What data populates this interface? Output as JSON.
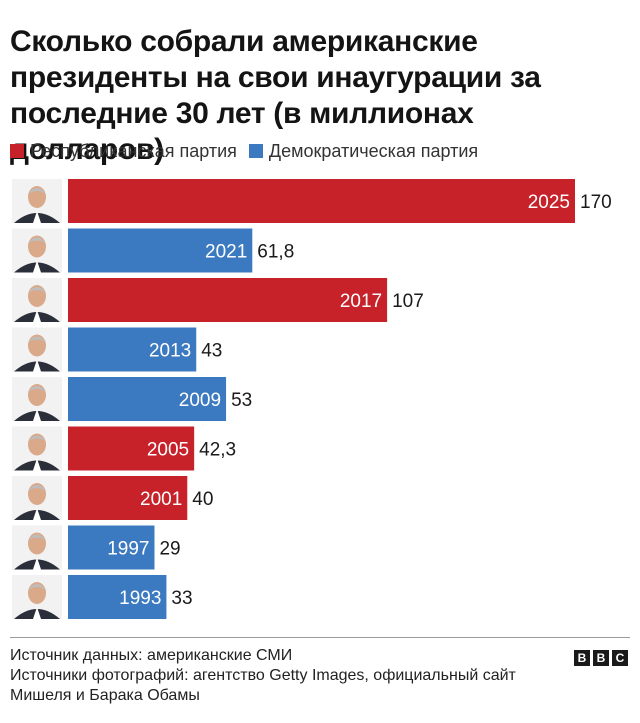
{
  "title": "Сколько собрали американские президенты на свои инаугурации за последние 30 лет (в миллионах долларов)",
  "legend": [
    {
      "label": "Республиканская партия",
      "color": "#c7222a"
    },
    {
      "label": "Демократическая партия",
      "color": "#3b7ac0"
    }
  ],
  "chart_data": {
    "type": "bar",
    "orientation": "horizontal",
    "categories": [
      "2025",
      "2021",
      "2017",
      "2013",
      "2009",
      "2005",
      "2001",
      "1997",
      "1993"
    ],
    "values": [
      170,
      61.8,
      107,
      43,
      53,
      42.3,
      40,
      29,
      33
    ],
    "value_labels": [
      "170",
      "61,8",
      "107",
      "43",
      "53",
      "42,3",
      "40",
      "29",
      "33"
    ],
    "party": [
      "Республиканская партия",
      "Демократическая партия",
      "Республиканская партия",
      "Демократическая партия",
      "Демократическая партия",
      "Республиканская партия",
      "Республиканская партия",
      "Демократическая партия",
      "Демократическая партия"
    ],
    "xlim": [
      0,
      170
    ],
    "grid": false,
    "legend_position": "top-left"
  },
  "footer": {
    "data_source": "Источник данных: американские СМИ",
    "photo_source": "Источники фотографий: агентство Getty Images, официальный сайт Мишеля и Барака Обамы"
  },
  "logo": [
    "B",
    "B",
    "C"
  ]
}
